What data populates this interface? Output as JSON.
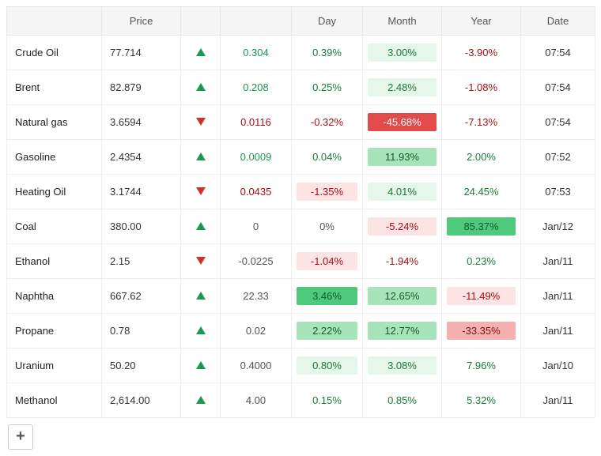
{
  "columns": [
    "",
    "Price",
    "",
    "",
    "Day",
    "Month",
    "Year",
    "Date"
  ],
  "heatmap": {
    "pos_strong": "#4fc97b",
    "pos_mid": "#a8e4b9",
    "pos_light": "#e5f7ea",
    "neg_strong": "#e34a4a",
    "neg_mid": "#f5b0b0",
    "neg_light": "#fde4e4",
    "none": "transparent"
  },
  "rows": [
    {
      "name": "Crude Oil",
      "price": "77.714",
      "dir": "up",
      "change": "0.304",
      "change_color": "up",
      "day": "0.39%",
      "day_hm": "none",
      "month": "3.00%",
      "month_hm": "pos_light",
      "year": "-3.90%",
      "year_hm": "none",
      "date": "07:54"
    },
    {
      "name": "Brent",
      "price": "82.879",
      "dir": "up",
      "change": "0.208",
      "change_color": "up",
      "day": "0.25%",
      "day_hm": "none",
      "month": "2.48%",
      "month_hm": "pos_light",
      "year": "-1.08%",
      "year_hm": "none",
      "date": "07:54"
    },
    {
      "name": "Natural gas",
      "price": "3.6594",
      "dir": "down",
      "change": "0.0116",
      "change_color": "down",
      "day": "-0.32%",
      "day_hm": "none",
      "month": "-45.68%",
      "month_hm": "neg_strong",
      "year": "-7.13%",
      "year_hm": "none",
      "date": "07:54"
    },
    {
      "name": "Gasoline",
      "price": "2.4354",
      "dir": "up",
      "change": "0.0009",
      "change_color": "up",
      "day": "0.04%",
      "day_hm": "none",
      "month": "11.93%",
      "month_hm": "pos_mid",
      "year": "2.00%",
      "year_hm": "none",
      "date": "07:52"
    },
    {
      "name": "Heating Oil",
      "price": "3.1744",
      "dir": "down",
      "change": "0.0435",
      "change_color": "down",
      "day": "-1.35%",
      "day_hm": "neg_light",
      "month": "4.01%",
      "month_hm": "pos_light",
      "year": "24.45%",
      "year_hm": "none",
      "date": "07:53"
    },
    {
      "name": "Coal",
      "price": "380.00",
      "dir": "up",
      "change": "0",
      "change_color": "zero",
      "day": "0%",
      "day_hm": "none",
      "month": "-5.24%",
      "month_hm": "neg_light",
      "year": "85.37%",
      "year_hm": "pos_strong",
      "date": "Jan/12"
    },
    {
      "name": "Ethanol",
      "price": "2.15",
      "dir": "down",
      "change": "-0.0225",
      "change_color": "zero",
      "day": "-1.04%",
      "day_hm": "neg_light",
      "month": "-1.94%",
      "month_hm": "none",
      "year": "0.23%",
      "year_hm": "none",
      "date": "Jan/11"
    },
    {
      "name": "Naphtha",
      "price": "667.62",
      "dir": "up",
      "change": "22.33",
      "change_color": "zero",
      "day": "3.46%",
      "day_hm": "pos_strong",
      "month": "12.65%",
      "month_hm": "pos_mid",
      "year": "-11.49%",
      "year_hm": "neg_light",
      "date": "Jan/11"
    },
    {
      "name": "Propane",
      "price": "0.78",
      "dir": "up",
      "change": "0.02",
      "change_color": "zero",
      "day": "2.22%",
      "day_hm": "pos_mid",
      "month": "12.77%",
      "month_hm": "pos_mid",
      "year": "-33.35%",
      "year_hm": "neg_mid",
      "date": "Jan/11"
    },
    {
      "name": "Uranium",
      "price": "50.20",
      "dir": "up",
      "change": "0.4000",
      "change_color": "zero",
      "day": "0.80%",
      "day_hm": "pos_light",
      "month": "3.08%",
      "month_hm": "pos_light",
      "year": "7.96%",
      "year_hm": "none",
      "date": "Jan/10"
    },
    {
      "name": "Methanol",
      "price": "2,614.00",
      "dir": "up",
      "change": "4.00",
      "change_color": "zero",
      "day": "0.15%",
      "day_hm": "none",
      "month": "0.85%",
      "month_hm": "none",
      "year": "5.32%",
      "year_hm": "none",
      "date": "Jan/11"
    }
  ],
  "add_button": "+"
}
